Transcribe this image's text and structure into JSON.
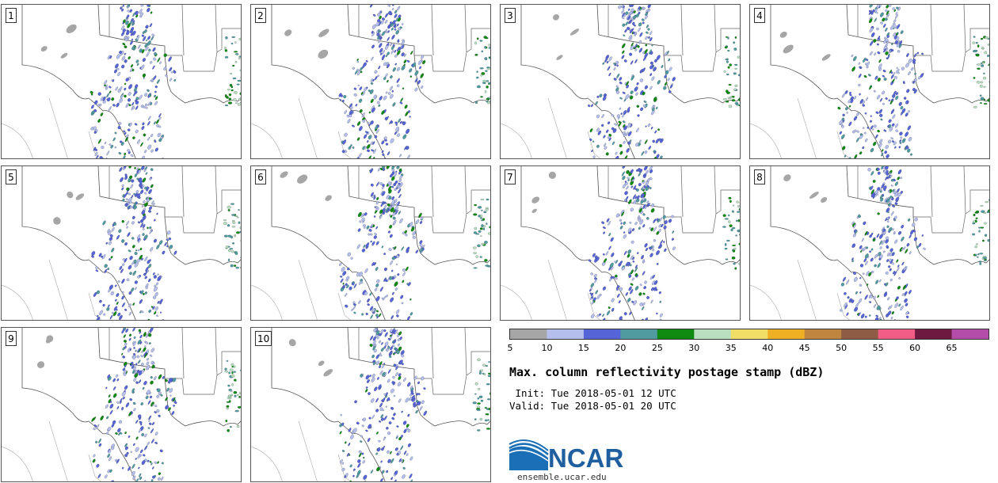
{
  "panels": [
    {
      "label": "1"
    },
    {
      "label": "2"
    },
    {
      "label": "3"
    },
    {
      "label": "4"
    },
    {
      "label": "5"
    },
    {
      "label": "6"
    },
    {
      "label": "7"
    },
    {
      "label": "8"
    },
    {
      "label": "9"
    },
    {
      "label": "10"
    }
  ],
  "colorbar": {
    "colors": [
      "#a6a6a6",
      "#b4bfee",
      "#5565d8",
      "#4f9ba0",
      "#0f8a10",
      "#b9dec0",
      "#f0de66",
      "#f0b024",
      "#c08640",
      "#8e5c44",
      "#f05c84",
      "#6e1a40",
      "#b44caa"
    ],
    "tick_labels": [
      "5",
      "10",
      "15",
      "20",
      "25",
      "30",
      "35",
      "40",
      "45",
      "50",
      "55",
      "60",
      "65"
    ]
  },
  "title": "Max. column reflectivity postage stamp (dBZ)",
  "init": " Init: Tue 2018-05-01 12 UTC",
  "valid": "Valid: Tue 2018-05-01 20 UTC",
  "logo": {
    "name": "NCAR",
    "url": "ensemble.ucar.edu"
  }
}
